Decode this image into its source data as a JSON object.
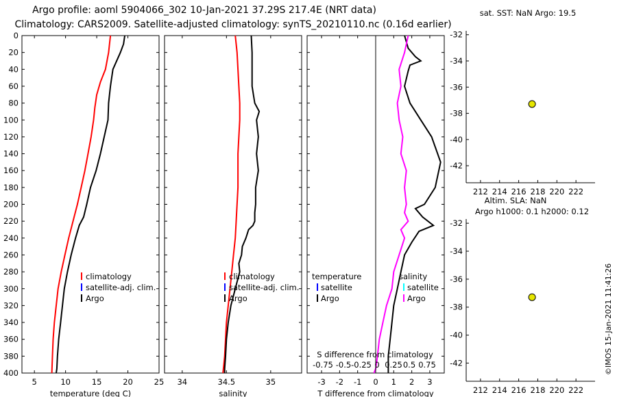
{
  "header": {
    "line1": "Argo profile: aoml 5904066_302 10-Jan-2021 37.29S 217.4E (NRT data)",
    "line2": "Climatology: CARS2009. Satellite-adjusted climatology: synTS_20210110.nc (0.16d earlier)"
  },
  "colors": {
    "climatology": "#ff0000",
    "satellite": "#0000ff",
    "argo": "#000000",
    "salinity_diff": "#ff00ff",
    "salinity_sat": "#00ffff",
    "marker": "#e6e600"
  },
  "chart_data": [
    {
      "id": "temperature",
      "type": "line",
      "xlabel": "temperature (deg C)",
      "xlim": [
        3,
        25
      ],
      "ylim": [
        400,
        0
      ],
      "xticks": [
        5,
        10,
        15,
        20,
        25
      ],
      "yticks": [
        0,
        20,
        40,
        60,
        80,
        100,
        120,
        140,
        160,
        180,
        200,
        220,
        240,
        260,
        280,
        300,
        320,
        340,
        360,
        380,
        400
      ],
      "legend": [
        "climatology",
        "satellite-adj. clim.",
        "Argo"
      ],
      "series": [
        {
          "name": "climatology",
          "color": "#ff0000",
          "x": [
            17.2,
            16.9,
            16.4,
            15.6,
            15.0,
            14.7,
            14.5,
            14.1,
            13.6,
            13.1,
            12.5,
            11.9,
            11.2,
            10.5,
            9.9,
            9.3,
            8.8,
            8.5,
            8.2,
            8.0,
            7.9,
            7.8
          ],
          "y": [
            0,
            20,
            40,
            55,
            70,
            85,
            100,
            120,
            140,
            160,
            180,
            200,
            220,
            240,
            260,
            280,
            300,
            320,
            340,
            360,
            380,
            400
          ]
        },
        {
          "name": "Argo",
          "color": "#000000",
          "x": [
            19.5,
            19.3,
            18.8,
            17.6,
            17.2,
            16.9,
            16.8,
            16.2,
            15.6,
            14.9,
            14.0,
            13.4,
            12.9,
            12.2,
            11.6,
            10.9,
            10.3,
            9.8,
            9.5,
            9.2,
            8.9,
            8.7,
            8.6,
            8.5
          ],
          "y": [
            0,
            10,
            20,
            40,
            60,
            80,
            100,
            120,
            140,
            160,
            180,
            200,
            215,
            225,
            240,
            260,
            280,
            300,
            320,
            340,
            360,
            380,
            395,
            400
          ]
        }
      ]
    },
    {
      "id": "salinity",
      "type": "line",
      "xlabel": "salinity",
      "xlim": [
        33.8,
        35.35
      ],
      "ylim": [
        400,
        0
      ],
      "xticks": [
        34,
        34.5,
        35
      ],
      "xticklabels": [
        "34",
        "34.5",
        "35"
      ],
      "legend": [
        "climatology",
        "satellite-adj. clim.",
        "Argo"
      ],
      "series": [
        {
          "name": "climatology",
          "color": "#ff0000",
          "x": [
            34.6,
            34.62,
            34.63,
            34.64,
            34.65,
            34.65,
            34.64,
            34.63,
            34.63,
            34.63,
            34.62,
            34.61,
            34.6,
            34.58,
            34.56,
            34.54,
            34.52,
            34.5,
            34.49,
            34.48,
            34.47,
            34.46
          ],
          "y": [
            0,
            20,
            40,
            60,
            80,
            100,
            120,
            140,
            160,
            180,
            200,
            220,
            240,
            260,
            280,
            300,
            320,
            340,
            360,
            380,
            390,
            400
          ]
        },
        {
          "name": "Argo",
          "color": "#000000",
          "x": [
            34.78,
            34.79,
            34.79,
            34.79,
            34.82,
            34.87,
            34.84,
            34.86,
            34.84,
            34.86,
            34.83,
            34.83,
            34.82,
            34.82,
            34.8,
            34.75,
            34.72,
            34.68,
            34.67,
            34.64,
            34.65,
            34.6,
            34.55,
            34.52,
            34.5,
            34.49,
            34.48,
            34.48
          ],
          "y": [
            0,
            20,
            40,
            60,
            80,
            90,
            100,
            120,
            140,
            160,
            180,
            200,
            210,
            220,
            225,
            230,
            240,
            250,
            260,
            270,
            280,
            300,
            320,
            340,
            360,
            380,
            395,
            400
          ]
        }
      ]
    },
    {
      "id": "difference",
      "type": "line",
      "xlabel": "T difference from climatology",
      "xlim": [
        -3.8,
        3.8
      ],
      "ylim": [
        400,
        0
      ],
      "xticks": [
        -3,
        -2,
        -1,
        0,
        1,
        2,
        3
      ],
      "xticklabels": [
        "-3",
        "-2",
        "-1",
        "0",
        "1",
        "2",
        "3"
      ],
      "s_axis_label": "S difference from climatology",
      "s_ticklabels": [
        "-0.75",
        "-0.5",
        "-0.25",
        "0",
        "0.25",
        "0.5",
        "0.75"
      ],
      "legend_left_title": "temperature",
      "legend_right_title": "salinity",
      "legend_items": [
        "satellite",
        "Argo"
      ],
      "series": [
        {
          "name": "T Argo",
          "color": "#000000",
          "x": [
            1.6,
            1.8,
            2.2,
            2.5,
            1.9,
            1.8,
            1.6,
            1.9,
            2.5,
            3.1,
            3.6,
            3.3,
            2.7,
            2.2,
            2.6,
            3.2,
            2.4,
            2.0,
            1.6,
            1.4,
            1.2,
            1.0,
            0.9,
            0.8,
            0.7,
            0.7
          ],
          "y": [
            0,
            15,
            25,
            30,
            35,
            42,
            60,
            80,
            100,
            120,
            150,
            180,
            200,
            205,
            215,
            225,
            232,
            245,
            260,
            280,
            300,
            320,
            340,
            360,
            380,
            400
          ]
        },
        {
          "name": "S Argo",
          "color": "#ff00ff",
          "x": [
            1.8,
            1.6,
            1.3,
            1.4,
            1.2,
            1.3,
            1.5,
            1.4,
            1.7,
            1.6,
            1.7,
            1.6,
            1.8,
            1.4,
            1.6,
            1.3,
            1.0,
            0.9,
            0.6,
            0.4,
            0.2,
            0.1,
            0.0,
            -0.1
          ],
          "y": [
            0,
            20,
            40,
            60,
            80,
            100,
            120,
            140,
            160,
            180,
            200,
            210,
            220,
            230,
            240,
            260,
            280,
            300,
            320,
            340,
            360,
            380,
            395,
            400
          ]
        }
      ]
    },
    {
      "id": "sst_map",
      "type": "scatter",
      "title": "sat. SST: NaN Argo: 19.5",
      "xlim": [
        210.5,
        224
      ],
      "ylim": [
        -43.3,
        -31.7
      ],
      "xticks": [
        212,
        214,
        216,
        218,
        220,
        222
      ],
      "yticks": [
        -32,
        -34,
        -36,
        -38,
        -40,
        -42
      ],
      "point": {
        "x": 217.4,
        "y": -37.29
      }
    },
    {
      "id": "sla_map",
      "type": "scatter",
      "title1": "Altim. SLA: NaN",
      "title2": "Argo h1000: 0.1 h2000: 0.12",
      "xlim": [
        210.5,
        224
      ],
      "ylim": [
        -43.3,
        -31.7
      ],
      "xticks": [
        212,
        214,
        216,
        218,
        220,
        222
      ],
      "yticks": [
        -32,
        -34,
        -36,
        -38,
        -40,
        -42
      ],
      "point": {
        "x": 217.4,
        "y": -37.29
      }
    }
  ],
  "credit": "©IMOS 15-Jan-2021 11:41:26"
}
